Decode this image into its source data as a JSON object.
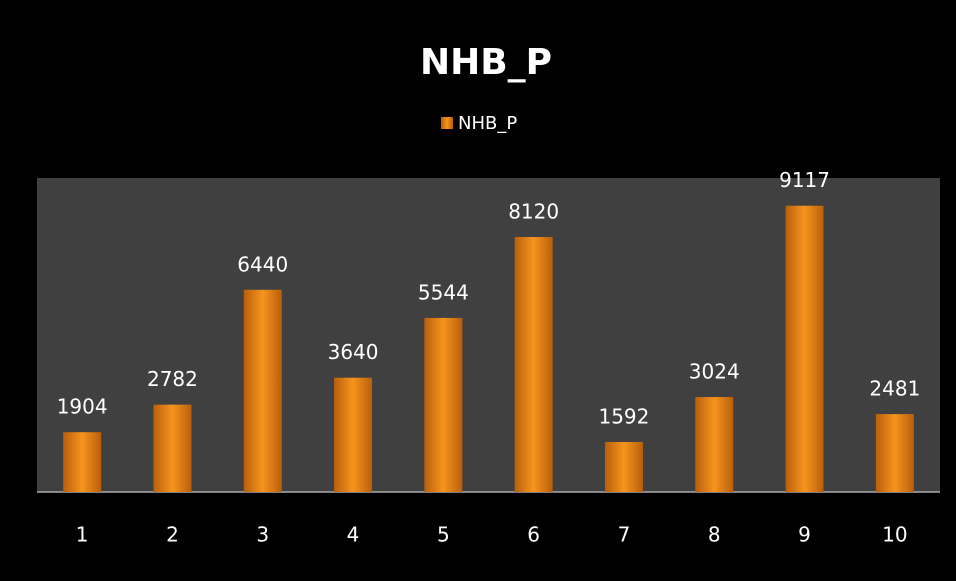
{
  "chart_data": {
    "type": "bar",
    "title": "NHB_P",
    "categories": [
      "1",
      "2",
      "3",
      "4",
      "5",
      "6",
      "7",
      "8",
      "9",
      "10"
    ],
    "series": [
      {
        "name": "NHB_P",
        "color": "#f7941d",
        "values": [
          1904,
          2782,
          6440,
          3640,
          5544,
          8120,
          1592,
          3024,
          9117,
          2481
        ]
      }
    ],
    "ylim": [
      0,
      10000
    ],
    "legend": "top"
  }
}
